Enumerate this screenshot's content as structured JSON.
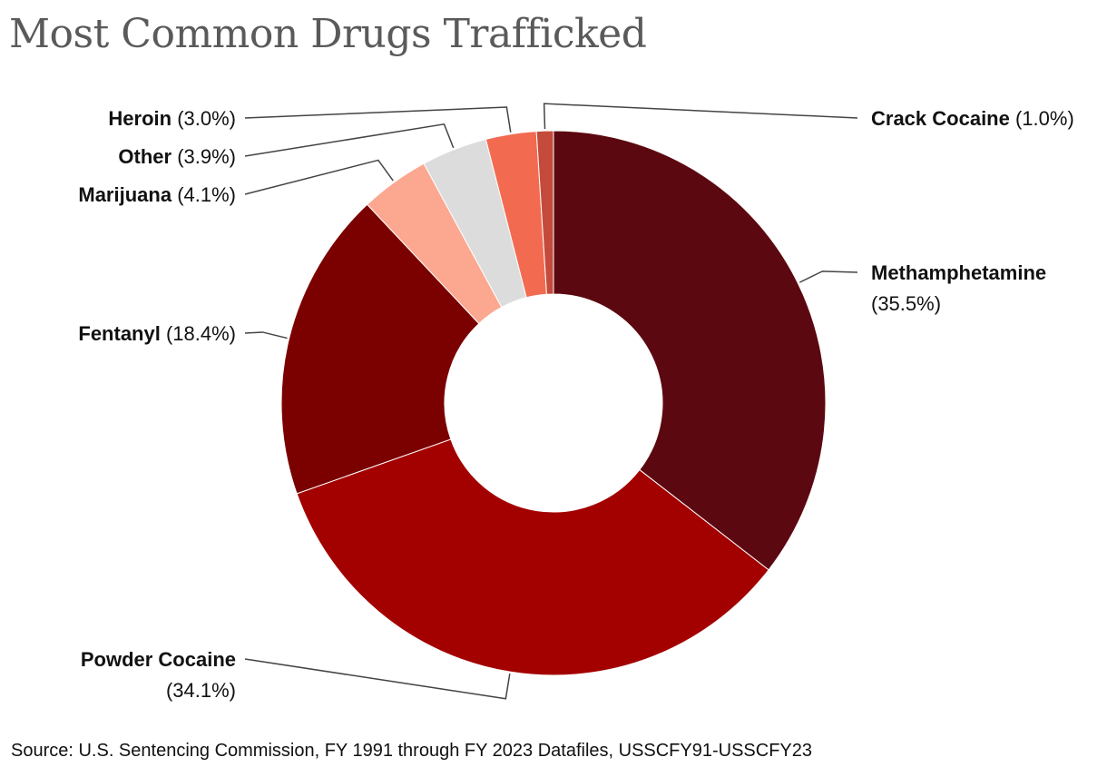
{
  "chart_data": {
    "type": "pie",
    "title": "Most Common Drugs Trafficked",
    "donut": true,
    "slices": [
      {
        "name": "Methamphetamine",
        "value": 35.5,
        "value_label": "(35.5%)",
        "color": "#5c0811"
      },
      {
        "name": "Powder Cocaine",
        "value": 34.1,
        "value_label": "(34.1%)",
        "color": "#a30000"
      },
      {
        "name": "Fentanyl",
        "value": 18.4,
        "value_label": "(18.4%)",
        "color": "#7b0000"
      },
      {
        "name": "Marijuana",
        "value": 4.1,
        "value_label": "(4.1%)",
        "color": "#fca891"
      },
      {
        "name": "Other",
        "value": 3.9,
        "value_label": "(3.9%)",
        "color": "#dcdcdc"
      },
      {
        "name": "Heroin",
        "value": 3.0,
        "value_label": "(3.0%)",
        "color": "#f26b50"
      },
      {
        "name": "Crack Cocaine",
        "value": 1.0,
        "value_label": "(1.0%)",
        "color": "#c44b3c"
      }
    ]
  },
  "source": "Source: U.S. Sentencing Commission, FY 1991 through FY 2023 Datafiles, USSCFY91-USSCFY23",
  "colors": {
    "title": "#5a5a5a",
    "leader_line": "#444444",
    "text": "#111111",
    "slice_border": "#ffffff"
  }
}
